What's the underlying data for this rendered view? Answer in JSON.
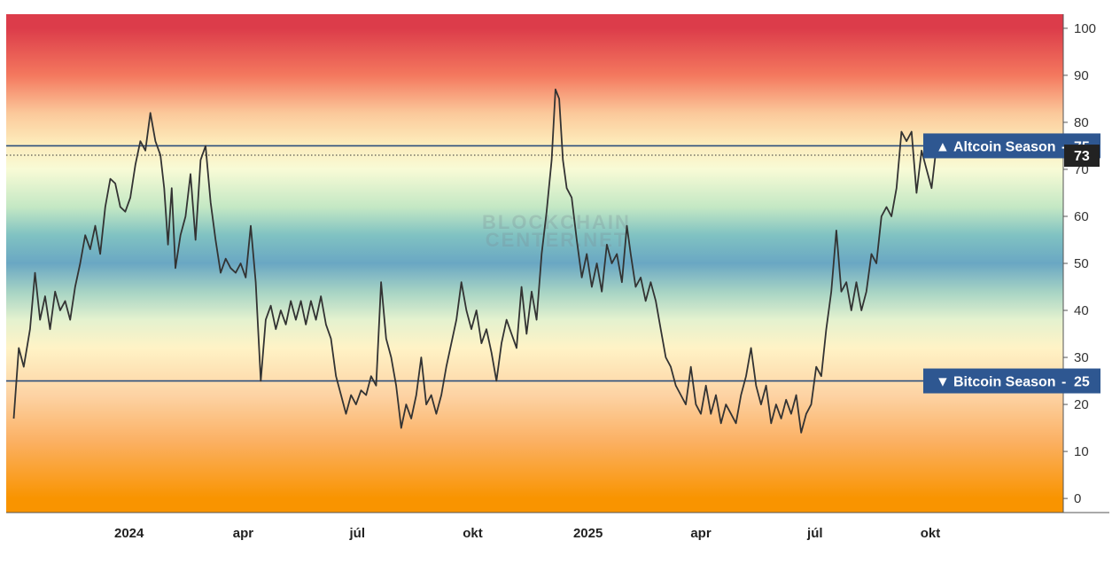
{
  "watermark": {
    "line1": "BLOCKCHAIN",
    "line2": "CENTER.NET"
  },
  "chart_data": {
    "type": "line",
    "y_ticks": [
      0,
      10,
      20,
      30,
      40,
      50,
      60,
      70,
      80,
      90,
      100
    ],
    "ylim": [
      -3,
      103
    ],
    "x_ticks": [
      {
        "label": "2024",
        "date": "2024-01-01",
        "major": true
      },
      {
        "label": "apr",
        "date": "2024-04-01",
        "major": false
      },
      {
        "label": "júl",
        "date": "2024-07-01",
        "major": false
      },
      {
        "label": "okt",
        "date": "2024-10-01",
        "major": false
      },
      {
        "label": "2025",
        "date": "2025-01-01",
        "major": true
      },
      {
        "label": "apr",
        "date": "2025-04-01",
        "major": false
      },
      {
        "label": "júl",
        "date": "2025-07-01",
        "major": false
      },
      {
        "label": "okt",
        "date": "2025-10-01",
        "major": false
      }
    ],
    "xlim": [
      "2023-09-25",
      "2026-01-15"
    ],
    "thresholds": [
      {
        "label": "Altcoin Season",
        "value": 75,
        "value_label": "75",
        "marker": "▲"
      },
      {
        "label": "Bitcoin Season",
        "value": 25,
        "value_label": "25",
        "marker": "▼"
      }
    ],
    "current": {
      "value": 73,
      "label": "73"
    },
    "background_gradient": [
      {
        "value": 100,
        "color": "#dc3c4a"
      },
      {
        "value": 90,
        "color": "#f4785e"
      },
      {
        "value": 82,
        "color": "#fbc89a"
      },
      {
        "value": 76,
        "color": "#fde9b8"
      },
      {
        "value": 70,
        "color": "#f8fbd6"
      },
      {
        "value": 62,
        "color": "#c4e8c4"
      },
      {
        "value": 56,
        "color": "#80c2c2"
      },
      {
        "value": 50,
        "color": "#6aa7c3"
      },
      {
        "value": 44,
        "color": "#a6d3c4"
      },
      {
        "value": 38,
        "color": "#e4f2cf"
      },
      {
        "value": 32,
        "color": "#fff3c6"
      },
      {
        "value": 22,
        "color": "#fdd3a4"
      },
      {
        "value": 12,
        "color": "#fbb062"
      },
      {
        "value": 0,
        "color": "#f99400"
      }
    ],
    "colors": {
      "line": "#333333",
      "threshold": "#2c4e7c",
      "badge": "#2e5791",
      "current_badge": "#222222"
    },
    "series": [
      {
        "points": [
          [
            "2023-10-01",
            17
          ],
          [
            "2023-10-05",
            32
          ],
          [
            "2023-10-09",
            28
          ],
          [
            "2023-10-14",
            36
          ],
          [
            "2023-10-18",
            48
          ],
          [
            "2023-10-22",
            38
          ],
          [
            "2023-10-26",
            43
          ],
          [
            "2023-10-30",
            36
          ],
          [
            "2023-11-03",
            44
          ],
          [
            "2023-11-07",
            40
          ],
          [
            "2023-11-11",
            42
          ],
          [
            "2023-11-15",
            38
          ],
          [
            "2023-11-19",
            45
          ],
          [
            "2023-11-23",
            50
          ],
          [
            "2023-11-27",
            56
          ],
          [
            "2023-12-01",
            53
          ],
          [
            "2023-12-05",
            58
          ],
          [
            "2023-12-09",
            52
          ],
          [
            "2023-12-13",
            62
          ],
          [
            "2023-12-17",
            68
          ],
          [
            "2023-12-21",
            67
          ],
          [
            "2023-12-25",
            62
          ],
          [
            "2023-12-29",
            61
          ],
          [
            "2024-01-02",
            64
          ],
          [
            "2024-01-06",
            71
          ],
          [
            "2024-01-10",
            76
          ],
          [
            "2024-01-14",
            74
          ],
          [
            "2024-01-18",
            82
          ],
          [
            "2024-01-22",
            76
          ],
          [
            "2024-01-26",
            73
          ],
          [
            "2024-01-29",
            66
          ],
          [
            "2024-02-01",
            54
          ],
          [
            "2024-02-04",
            66
          ],
          [
            "2024-02-07",
            49
          ],
          [
            "2024-02-11",
            56
          ],
          [
            "2024-02-15",
            60
          ],
          [
            "2024-02-19",
            69
          ],
          [
            "2024-02-23",
            55
          ],
          [
            "2024-02-27",
            72
          ],
          [
            "2024-03-02",
            75
          ],
          [
            "2024-03-06",
            63
          ],
          [
            "2024-03-10",
            55
          ],
          [
            "2024-03-14",
            48
          ],
          [
            "2024-03-18",
            51
          ],
          [
            "2024-03-22",
            49
          ],
          [
            "2024-03-26",
            48
          ],
          [
            "2024-03-30",
            50
          ],
          [
            "2024-04-03",
            47
          ],
          [
            "2024-04-07",
            58
          ],
          [
            "2024-04-11",
            46
          ],
          [
            "2024-04-15",
            25
          ],
          [
            "2024-04-19",
            38
          ],
          [
            "2024-04-23",
            41
          ],
          [
            "2024-04-27",
            36
          ],
          [
            "2024-05-01",
            40
          ],
          [
            "2024-05-05",
            37
          ],
          [
            "2024-05-09",
            42
          ],
          [
            "2024-05-13",
            38
          ],
          [
            "2024-05-17",
            42
          ],
          [
            "2024-05-21",
            37
          ],
          [
            "2024-05-25",
            42
          ],
          [
            "2024-05-29",
            38
          ],
          [
            "2024-06-02",
            43
          ],
          [
            "2024-06-06",
            37
          ],
          [
            "2024-06-10",
            34
          ],
          [
            "2024-06-14",
            26
          ],
          [
            "2024-06-18",
            22
          ],
          [
            "2024-06-22",
            18
          ],
          [
            "2024-06-26",
            22
          ],
          [
            "2024-06-30",
            20
          ],
          [
            "2024-07-04",
            23
          ],
          [
            "2024-07-08",
            22
          ],
          [
            "2024-07-12",
            26
          ],
          [
            "2024-07-16",
            24
          ],
          [
            "2024-07-20",
            46
          ],
          [
            "2024-07-24",
            34
          ],
          [
            "2024-07-28",
            30
          ],
          [
            "2024-08-01",
            24
          ],
          [
            "2024-08-05",
            15
          ],
          [
            "2024-08-09",
            20
          ],
          [
            "2024-08-13",
            17
          ],
          [
            "2024-08-17",
            22
          ],
          [
            "2024-08-21",
            30
          ],
          [
            "2024-08-25",
            20
          ],
          [
            "2024-08-29",
            22
          ],
          [
            "2024-09-02",
            18
          ],
          [
            "2024-09-06",
            22
          ],
          [
            "2024-09-10",
            28
          ],
          [
            "2024-09-14",
            33
          ],
          [
            "2024-09-18",
            38
          ],
          [
            "2024-09-22",
            46
          ],
          [
            "2024-09-26",
            40
          ],
          [
            "2024-09-30",
            36
          ],
          [
            "2024-10-04",
            40
          ],
          [
            "2024-10-08",
            33
          ],
          [
            "2024-10-12",
            36
          ],
          [
            "2024-10-16",
            31
          ],
          [
            "2024-10-20",
            25
          ],
          [
            "2024-10-24",
            33
          ],
          [
            "2024-10-28",
            38
          ],
          [
            "2024-11-01",
            35
          ],
          [
            "2024-11-05",
            32
          ],
          [
            "2024-11-09",
            45
          ],
          [
            "2024-11-13",
            35
          ],
          [
            "2024-11-17",
            44
          ],
          [
            "2024-11-21",
            38
          ],
          [
            "2024-11-25",
            52
          ],
          [
            "2024-11-29",
            61
          ],
          [
            "2024-12-03",
            72
          ],
          [
            "2024-12-06",
            87
          ],
          [
            "2024-12-09",
            85
          ],
          [
            "2024-12-12",
            72
          ],
          [
            "2024-12-15",
            66
          ],
          [
            "2024-12-19",
            64
          ],
          [
            "2024-12-23",
            55
          ],
          [
            "2024-12-27",
            47
          ],
          [
            "2024-12-31",
            52
          ],
          [
            "2025-01-04",
            45
          ],
          [
            "2025-01-08",
            50
          ],
          [
            "2025-01-12",
            44
          ],
          [
            "2025-01-16",
            54
          ],
          [
            "2025-01-20",
            50
          ],
          [
            "2025-01-24",
            52
          ],
          [
            "2025-01-28",
            46
          ],
          [
            "2025-02-01",
            58
          ],
          [
            "2025-02-04",
            52
          ],
          [
            "2025-02-08",
            45
          ],
          [
            "2025-02-12",
            47
          ],
          [
            "2025-02-16",
            42
          ],
          [
            "2025-02-20",
            46
          ],
          [
            "2025-02-24",
            42
          ],
          [
            "2025-02-28",
            36
          ],
          [
            "2025-03-04",
            30
          ],
          [
            "2025-03-08",
            28
          ],
          [
            "2025-03-12",
            24
          ],
          [
            "2025-03-16",
            22
          ],
          [
            "2025-03-20",
            20
          ],
          [
            "2025-03-24",
            28
          ],
          [
            "2025-03-28",
            20
          ],
          [
            "2025-04-01",
            18
          ],
          [
            "2025-04-05",
            24
          ],
          [
            "2025-04-09",
            18
          ],
          [
            "2025-04-13",
            22
          ],
          [
            "2025-04-17",
            16
          ],
          [
            "2025-04-21",
            20
          ],
          [
            "2025-04-25",
            18
          ],
          [
            "2025-04-29",
            16
          ],
          [
            "2025-05-03",
            22
          ],
          [
            "2025-05-07",
            26
          ],
          [
            "2025-05-11",
            32
          ],
          [
            "2025-05-15",
            24
          ],
          [
            "2025-05-19",
            20
          ],
          [
            "2025-05-23",
            24
          ],
          [
            "2025-05-27",
            16
          ],
          [
            "2025-05-31",
            20
          ],
          [
            "2025-06-04",
            17
          ],
          [
            "2025-06-08",
            21
          ],
          [
            "2025-06-12",
            18
          ],
          [
            "2025-06-16",
            22
          ],
          [
            "2025-06-20",
            14
          ],
          [
            "2025-06-24",
            18
          ],
          [
            "2025-06-28",
            20
          ],
          [
            "2025-07-02",
            28
          ],
          [
            "2025-07-06",
            26
          ],
          [
            "2025-07-10",
            36
          ],
          [
            "2025-07-14",
            44
          ],
          [
            "2025-07-18",
            57
          ],
          [
            "2025-07-22",
            44
          ],
          [
            "2025-07-26",
            46
          ],
          [
            "2025-07-30",
            40
          ],
          [
            "2025-08-03",
            46
          ],
          [
            "2025-08-07",
            40
          ],
          [
            "2025-08-11",
            44
          ],
          [
            "2025-08-15",
            52
          ],
          [
            "2025-08-19",
            50
          ],
          [
            "2025-08-23",
            60
          ],
          [
            "2025-08-27",
            62
          ],
          [
            "2025-08-31",
            60
          ],
          [
            "2025-09-04",
            66
          ],
          [
            "2025-09-08",
            78
          ],
          [
            "2025-09-12",
            76
          ],
          [
            "2025-09-16",
            78
          ],
          [
            "2025-09-20",
            65
          ],
          [
            "2025-09-24",
            74
          ],
          [
            "2025-09-28",
            70
          ],
          [
            "2025-10-02",
            66
          ],
          [
            "2025-10-05",
            73
          ]
        ]
      }
    ]
  }
}
